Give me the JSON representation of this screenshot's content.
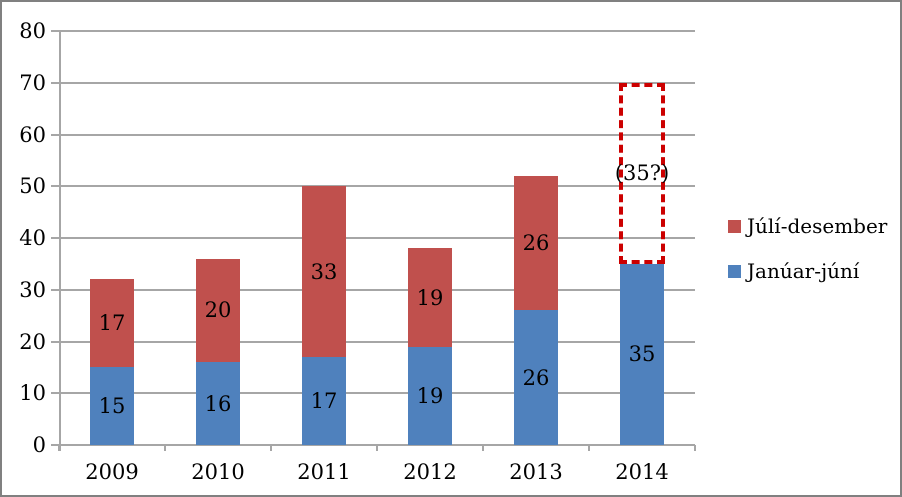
{
  "chart_data": {
    "type": "bar",
    "stacked": true,
    "title": "",
    "xlabel": "",
    "ylabel": "",
    "categories": [
      "2009",
      "2010",
      "2011",
      "2012",
      "2013",
      "2014"
    ],
    "series": [
      {
        "name": "Janúar-júní",
        "color": "#4F81BD",
        "values": [
          15,
          16,
          17,
          19,
          26,
          35
        ]
      },
      {
        "name": "Júlí-desember",
        "color": "#C0504D",
        "values": [
          17,
          20,
          33,
          19,
          26,
          null
        ]
      }
    ],
    "annotation": {
      "category": "2014",
      "label": "(35?)",
      "from": 35,
      "to": 70,
      "border_color": "#CC0000",
      "style": "dashed-box"
    },
    "yticks": [
      0,
      10,
      20,
      30,
      40,
      50,
      60,
      70,
      80
    ],
    "ylim": [
      0,
      80
    ],
    "grid": true,
    "gridline_color": "#A6A6A6",
    "legend_position": "right",
    "label_color": "#000000"
  },
  "legend": {
    "items": [
      {
        "label": "Júlí-desember",
        "color": "#C0504D"
      },
      {
        "label": "Janúar-júní",
        "color": "#4F81BD"
      }
    ]
  }
}
